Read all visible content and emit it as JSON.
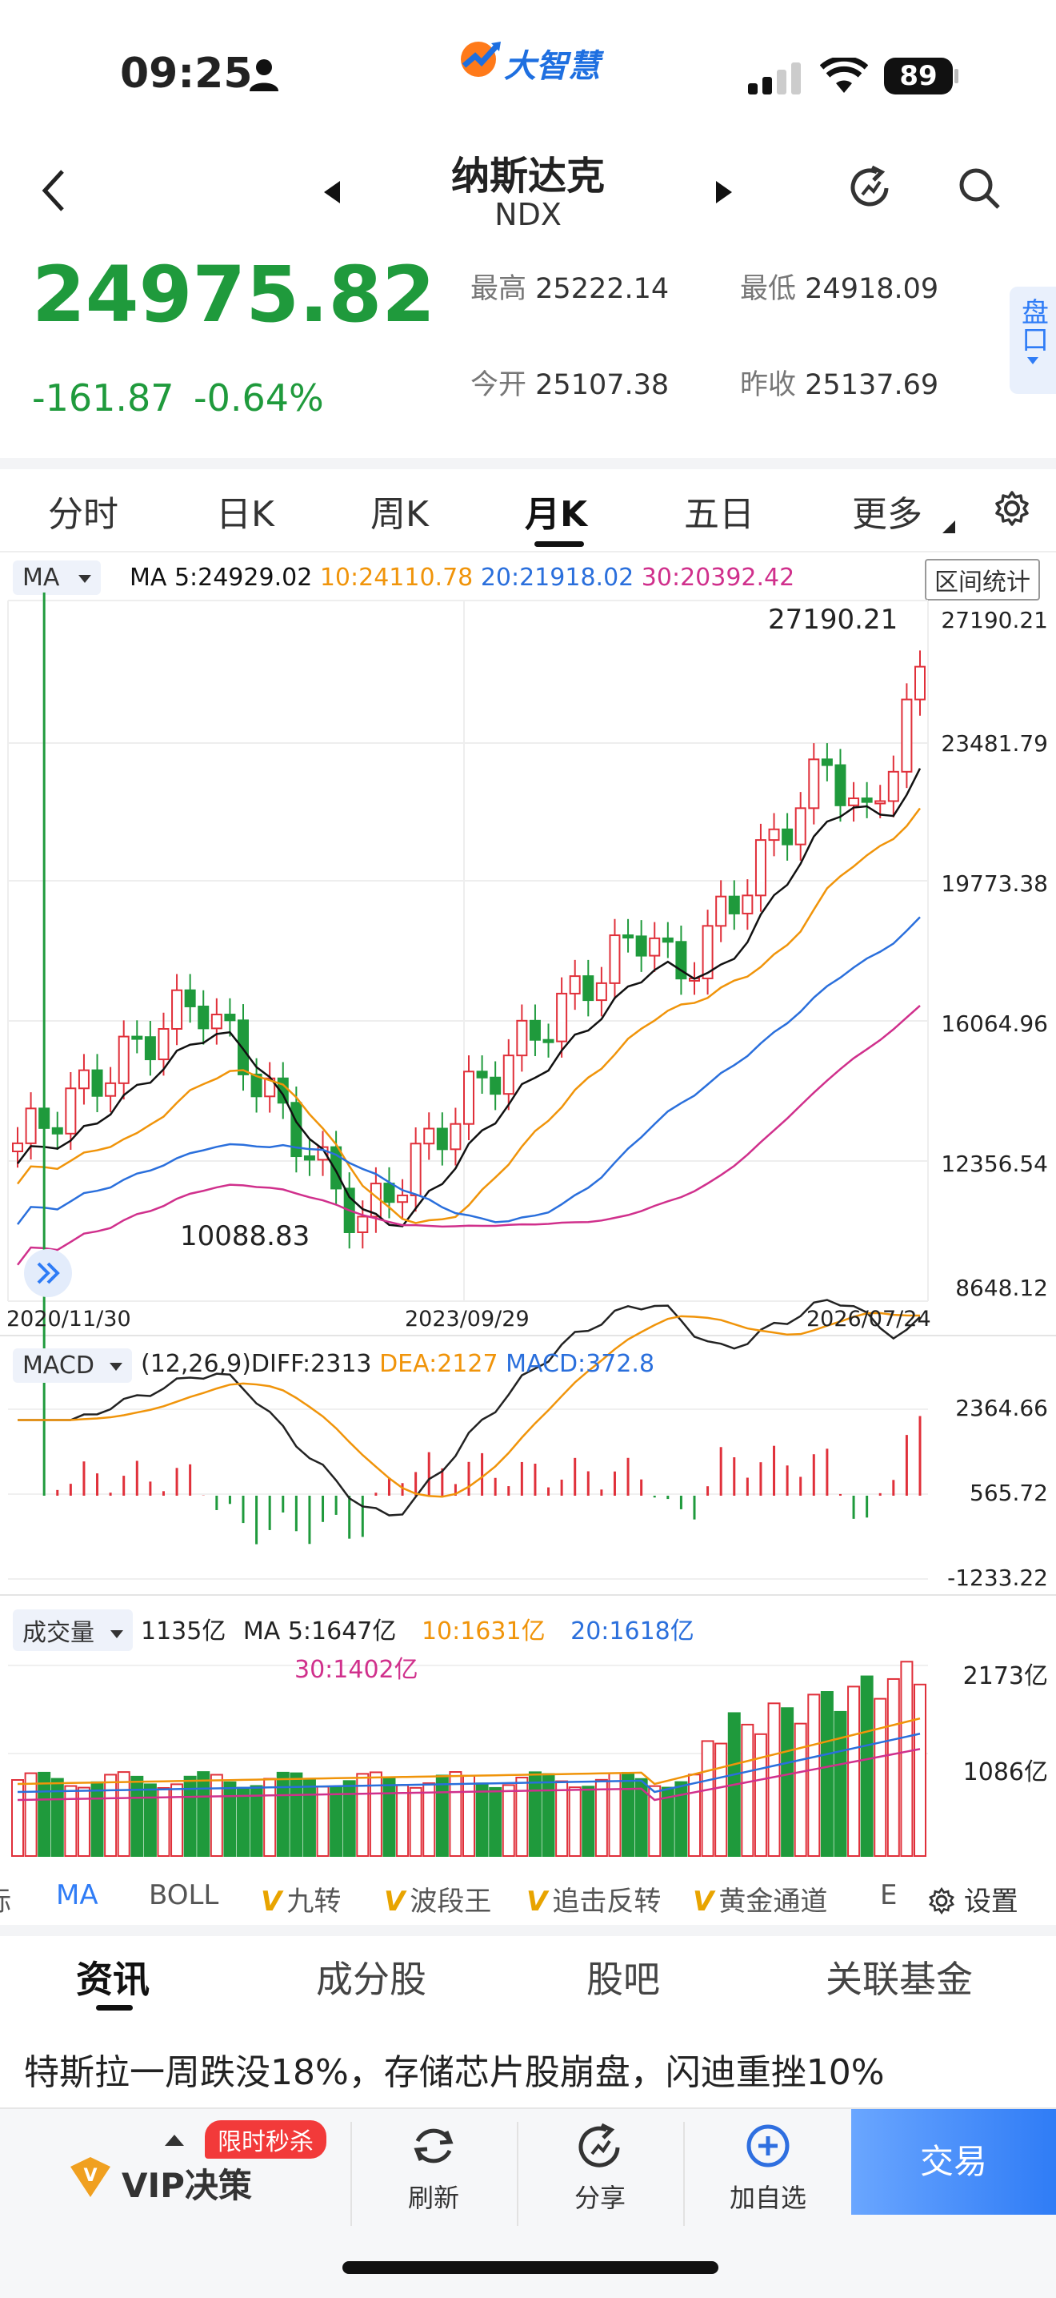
{
  "status_bar": {
    "time": "09:25",
    "battery": "89",
    "logo_text": "大智慧"
  },
  "header": {
    "name": "纳斯达克",
    "code": "NDX"
  },
  "quote": {
    "price": "24975.82",
    "change": "-161.87",
    "change_pct": "-0.64%",
    "high_label": "最高",
    "high": "25222.14",
    "low_label": "最低",
    "low": "24918.09",
    "open_label": "今开",
    "open": "25107.38",
    "prev_label": "昨收",
    "prev": "25137.69",
    "side_button": "盘口"
  },
  "tabs": [
    "分时",
    "日K",
    "周K",
    "月K",
    "五日",
    "更多"
  ],
  "kline": {
    "indicator": "MA",
    "ma_legend": {
      "ma5": "MA 5:24929.02",
      "ma10": "10:24110.78",
      "ma20": "20:21918.02",
      "ma30": "30:20392.42"
    },
    "range_stat_button": "区间统计",
    "y_ticks": [
      "27190.21",
      "23481.79",
      "19773.38",
      "16064.96",
      "12356.54",
      "8648.12"
    ],
    "dates": [
      "2020/11/30",
      "2023/09/29",
      "2026/07/24"
    ],
    "max_label": "27190.21",
    "min_label": "10088.83"
  },
  "macd": {
    "indicator": "MACD",
    "params": "(12,26,9)DIFF:2313",
    "dea": "DEA:2127",
    "macd": "MACD:372.8",
    "y_ticks": [
      "2364.66",
      "565.72",
      "-1233.22"
    ]
  },
  "volume": {
    "indicator": "成交量",
    "current": "1135亿",
    "ma5": "MA 5:1647亿",
    "ma10": "10:1631亿",
    "ma20": "20:1618亿",
    "ma30": "30:1402亿",
    "y_ticks": [
      "2173亿",
      "1086亿"
    ]
  },
  "indicator_bar": {
    "items": [
      "标",
      "MA",
      "BOLL",
      "九转",
      "波段王",
      "追击反转",
      "黄金通道",
      "E"
    ],
    "settings": "设置"
  },
  "news_tabs": [
    "资讯",
    "成分股",
    "股吧",
    "关联基金"
  ],
  "headline": "特斯拉一周跌没18%，存储芯片股崩盘，闪迪重挫10%",
  "bottom_bar": {
    "vip": "VIP决策",
    "promo": "限时秒杀",
    "refresh": "刷新",
    "share": "分享",
    "add": "加自选",
    "trade": "交易"
  },
  "colors": {
    "up": "#e0303a",
    "down": "#1f9a3c",
    "ma5": "#111111",
    "ma10": "#f0940a",
    "ma20": "#2a6fdc",
    "ma30": "#d0308c",
    "accent": "#2f7cf6"
  }
}
